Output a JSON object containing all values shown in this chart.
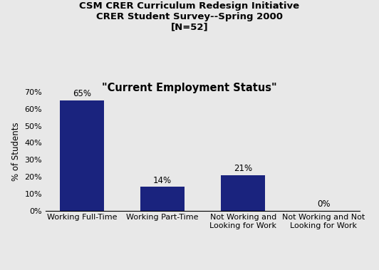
{
  "title_line1": "CSM CRER Curriculum Redesign Initiative",
  "title_line2": "CRER Student Survey--Spring 2000",
  "title_line3": "[N=52]",
  "subtitle": "\"Current Employment Status\"",
  "categories": [
    "Working Full-Time",
    "Working Part-Time",
    "Not Working and\nLooking for Work",
    "Not Working and Not\nLooking for Work"
  ],
  "values": [
    65,
    14,
    21,
    0
  ],
  "labels": [
    "65%",
    "14%",
    "21%",
    "0%"
  ],
  "bar_color": "#1a237e",
  "ylabel": "% of Students",
  "ylim": [
    0,
    70
  ],
  "yticks": [
    0,
    10,
    20,
    30,
    40,
    50,
    60,
    70
  ],
  "ytick_labels": [
    "0%",
    "10%",
    "20%",
    "30%",
    "40%",
    "50%",
    "60%",
    "70%"
  ],
  "background_color": "#e8e8e8",
  "plot_bg_color": "#e8e8e8",
  "title_fontsize": 9.5,
  "subtitle_fontsize": 10.5,
  "label_fontsize": 8.5,
  "tick_fontsize": 8,
  "ylabel_fontsize": 8.5
}
